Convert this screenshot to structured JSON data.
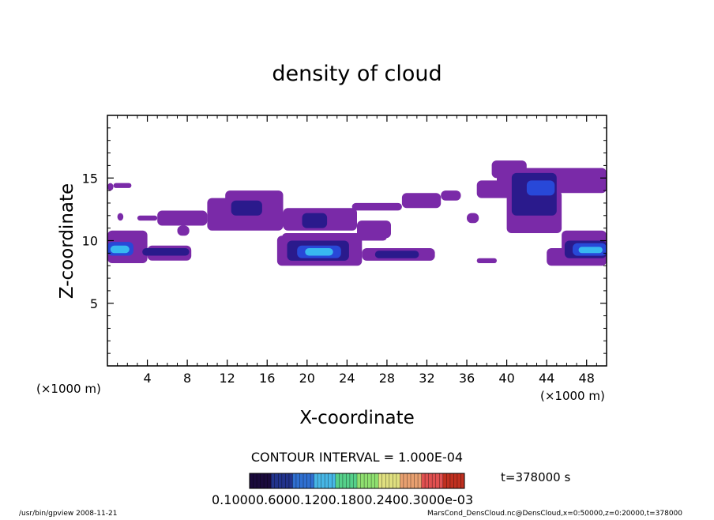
{
  "chart_data": {
    "type": "heatmap",
    "title": "density of cloud",
    "xlabel": "X-coordinate",
    "ylabel": "Z-coordinate",
    "x_unit_left": "(×1000 m)",
    "x_unit_right": "(×1000 m)",
    "xlim": [
      0,
      50
    ],
    "ylim": [
      0,
      20
    ],
    "x_ticks": [
      4,
      8,
      12,
      16,
      20,
      24,
      28,
      32,
      36,
      40,
      44,
      48
    ],
    "y_ticks": [
      5,
      10,
      15
    ],
    "contour_interval_text": "CONTOUR INTERVAL = 1.000E-04",
    "time_text": "t=378000 s",
    "colorbar_labels": "0.10000.6000.1200.1800.2400.3000e-03",
    "colorbar_colors": [
      "#1a0a3c",
      "#22338c",
      "#2f6fd0",
      "#47b7e6",
      "#55d08a",
      "#8fe070",
      "#e0e080",
      "#e8a070",
      "#e05050",
      "#c03020"
    ],
    "palette": {
      "purple": "#7a2aa8",
      "dark_blue": "#2a1a8c",
      "blue": "#2848d8",
      "cyan": "#38b8f0"
    },
    "footer_left": "/usr/bin/gpview   2008-11-21",
    "footer_right": "MarsCond_DensCloud.nc@DensCloud,x=0:50000,z=0:20000,t=378000",
    "cloud_regions": [
      {
        "x0": 0.0,
        "x1": 0.6,
        "z0": 14.0,
        "z1": 14.6,
        "level": "purple"
      },
      {
        "x0": 0.6,
        "x1": 2.4,
        "z0": 14.2,
        "z1": 14.6,
        "level": "purple"
      },
      {
        "x0": 0.0,
        "x1": 4.0,
        "z0": 8.2,
        "z1": 10.8,
        "level": "purple"
      },
      {
        "x0": 4.0,
        "x1": 8.4,
        "z0": 8.4,
        "z1": 9.6,
        "level": "purple"
      },
      {
        "x0": 0.0,
        "x1": 2.6,
        "z0": 8.8,
        "z1": 9.9,
        "level": "blue"
      },
      {
        "x0": 0.3,
        "x1": 2.2,
        "z0": 9.0,
        "z1": 9.6,
        "level": "cyan"
      },
      {
        "x0": 3.5,
        "x1": 8.2,
        "z0": 8.8,
        "z1": 9.4,
        "level": "dark_blue"
      },
      {
        "x0": 1.0,
        "x1": 1.6,
        "z0": 11.6,
        "z1": 12.2,
        "level": "purple"
      },
      {
        "x0": 3.0,
        "x1": 5.0,
        "z0": 11.6,
        "z1": 12.0,
        "level": "purple"
      },
      {
        "x0": 5.0,
        "x1": 10.0,
        "z0": 11.2,
        "z1": 12.4,
        "level": "purple"
      },
      {
        "x0": 7.0,
        "x1": 8.2,
        "z0": 10.4,
        "z1": 11.2,
        "level": "purple"
      },
      {
        "x0": 10.0,
        "x1": 17.6,
        "z0": 10.8,
        "z1": 13.4,
        "level": "purple"
      },
      {
        "x0": 11.8,
        "x1": 17.6,
        "z0": 12.2,
        "z1": 14.0,
        "level": "purple"
      },
      {
        "x0": 12.4,
        "x1": 15.5,
        "z0": 12.0,
        "z1": 13.2,
        "level": "dark_blue"
      },
      {
        "x0": 17.6,
        "x1": 25.0,
        "z0": 10.8,
        "z1": 12.6,
        "level": "purple"
      },
      {
        "x0": 19.5,
        "x1": 22.0,
        "z0": 11.0,
        "z1": 12.2,
        "level": "dark_blue"
      },
      {
        "x0": 25.0,
        "x1": 28.4,
        "z0": 10.2,
        "z1": 11.6,
        "level": "purple"
      },
      {
        "x0": 17.5,
        "x1": 28.0,
        "z0": 10.0,
        "z1": 10.6,
        "level": "purple"
      },
      {
        "x0": 17.0,
        "x1": 25.5,
        "z0": 8.0,
        "z1": 10.4,
        "level": "purple"
      },
      {
        "x0": 18.0,
        "x1": 24.2,
        "z0": 8.4,
        "z1": 10.0,
        "level": "dark_blue"
      },
      {
        "x0": 19.0,
        "x1": 23.4,
        "z0": 8.6,
        "z1": 9.6,
        "level": "blue"
      },
      {
        "x0": 19.8,
        "x1": 22.6,
        "z0": 8.8,
        "z1": 9.4,
        "level": "cyan"
      },
      {
        "x0": 25.5,
        "x1": 32.8,
        "z0": 8.4,
        "z1": 9.4,
        "level": "purple"
      },
      {
        "x0": 26.8,
        "x1": 31.2,
        "z0": 8.6,
        "z1": 9.2,
        "level": "dark_blue"
      },
      {
        "x0": 24.5,
        "x1": 29.5,
        "z0": 12.4,
        "z1": 13.0,
        "level": "purple"
      },
      {
        "x0": 29.5,
        "x1": 33.4,
        "z0": 12.6,
        "z1": 13.8,
        "level": "purple"
      },
      {
        "x0": 33.4,
        "x1": 35.4,
        "z0": 13.2,
        "z1": 14.0,
        "level": "purple"
      },
      {
        "x0": 37.0,
        "x1": 39.0,
        "z0": 8.2,
        "z1": 8.6,
        "level": "purple"
      },
      {
        "x0": 36.0,
        "x1": 37.2,
        "z0": 11.4,
        "z1": 12.2,
        "level": "purple"
      },
      {
        "x0": 37.0,
        "x1": 41.5,
        "z0": 13.4,
        "z1": 14.8,
        "level": "purple"
      },
      {
        "x0": 39.0,
        "x1": 50.0,
        "z0": 13.8,
        "z1": 15.8,
        "level": "purple"
      },
      {
        "x0": 38.5,
        "x1": 42.0,
        "z0": 15.0,
        "z1": 16.4,
        "level": "purple"
      },
      {
        "x0": 40.0,
        "x1": 45.5,
        "z0": 10.6,
        "z1": 14.0,
        "level": "purple"
      },
      {
        "x0": 40.5,
        "x1": 45.0,
        "z0": 12.0,
        "z1": 15.4,
        "level": "dark_blue"
      },
      {
        "x0": 42.0,
        "x1": 44.8,
        "z0": 13.6,
        "z1": 14.8,
        "level": "blue"
      },
      {
        "x0": 44.0,
        "x1": 50.0,
        "z0": 8.0,
        "z1": 9.4,
        "level": "purple"
      },
      {
        "x0": 45.5,
        "x1": 50.0,
        "z0": 9.0,
        "z1": 10.8,
        "level": "purple"
      },
      {
        "x0": 45.8,
        "x1": 50.0,
        "z0": 8.6,
        "z1": 10.0,
        "level": "dark_blue"
      },
      {
        "x0": 46.6,
        "x1": 50.0,
        "z0": 8.8,
        "z1": 9.8,
        "level": "blue"
      },
      {
        "x0": 47.2,
        "x1": 49.6,
        "z0": 9.0,
        "z1": 9.5,
        "level": "cyan"
      }
    ]
  }
}
